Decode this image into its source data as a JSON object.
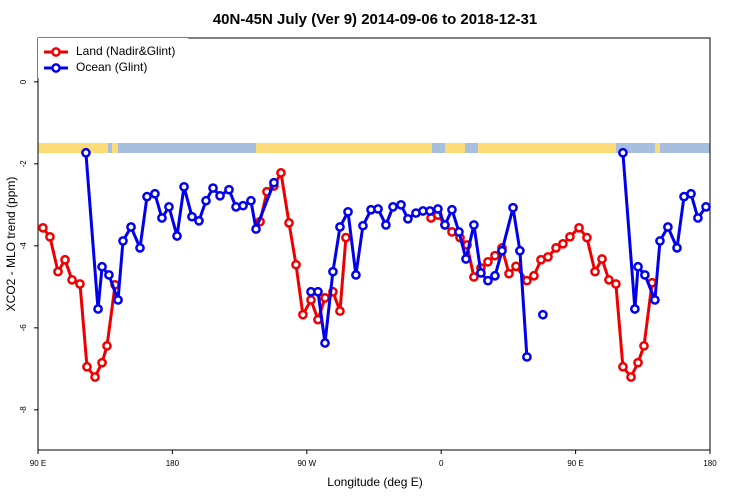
{
  "chart_data": {
    "type": "line",
    "title": "40N-45N July (Ver 9)   2014-09-06 to 2018-12-31",
    "xlabel": "Longitude (deg E)",
    "ylabel": "XCO2 - MLO trend (ppm)",
    "xlim": [
      90,
      540
    ],
    "ylim": [
      -8.98,
      1.07
    ],
    "xticks": [
      {
        "value": 90,
        "label": "90 E"
      },
      180,
      {
        "value": 270,
        "label": "90 W"
      },
      {
        "value": 360,
        "label": "0"
      },
      {
        "value": 450,
        "label": "90 E"
      },
      {
        "value": 540,
        "label": "180"
      }
    ],
    "yticks": [
      0,
      -2,
      -4,
      -6,
      -8
    ],
    "legend": "top-left",
    "series": [
      {
        "name": "Land (Nadir&Glint)",
        "color": "#ee0000",
        "x": [
          93.3,
          98.0,
          103.4,
          108.1,
          112.8,
          118.1,
          122.8,
          128.2,
          132.9,
          136.2,
          141.6,
          null,
          238.7,
          243.3,
          248.0,
          252.7,
          258.1,
          262.8,
          267.4,
          272.8,
          277.5,
          282.2,
          287.5,
          292.2,
          296.2,
          null,
          353.2,
          357.8,
          362.5,
          367.2,
          372.6,
          377.3,
          381.9,
          386.6,
          391.3,
          396.0,
          400.7,
          405.4,
          410.1,
          417.4,
          422.1,
          426.8,
          431.5,
          436.9,
          441.5,
          446.2,
          452.3,
          457.6,
          463.0,
          467.7,
          472.3,
          477.0,
          481.7,
          487.1,
          491.8,
          495.8,
          501.2
        ],
        "values": [
          -3.56,
          -3.78,
          -4.63,
          -4.34,
          -4.83,
          -4.93,
          -6.95,
          -7.2,
          -6.85,
          -6.44,
          -4.95,
          null,
          -3.41,
          -2.68,
          -2.54,
          -2.22,
          -3.44,
          -4.46,
          -5.68,
          -5.32,
          -5.8,
          -5.27,
          -5.12,
          -5.59,
          -3.8,
          null,
          -3.32,
          -3.25,
          -3.49,
          -3.66,
          -3.8,
          -3.98,
          -4.76,
          -4.54,
          -4.39,
          -4.24,
          -4.05,
          -4.68,
          -4.5,
          -4.85,
          -4.73,
          -4.34,
          -4.27,
          -4.05,
          -3.95,
          -3.78,
          -3.56,
          -3.8,
          -4.63,
          -4.32,
          -4.83,
          -4.93,
          -6.95,
          -7.2,
          -6.85,
          -6.44,
          -4.9
        ]
      },
      {
        "name": "Ocean (Glint)",
        "color": "#0000ee",
        "x": [
          122.1,
          130.2,
          132.9,
          137.5,
          143.6,
          146.9,
          152.3,
          158.3,
          163.0,
          168.3,
          173.0,
          177.7,
          183.1,
          187.8,
          193.1,
          197.8,
          202.5,
          207.2,
          211.9,
          217.9,
          222.6,
          227.3,
          232.6,
          236.0,
          248.0,
          null,
          272.8,
          277.5,
          282.2,
          287.5,
          292.2,
          297.6,
          302.9,
          307.6,
          313.0,
          317.7,
          323.0,
          327.7,
          333.1,
          337.7,
          343.1,
          347.8,
          352.5,
          357.8,
          362.5,
          367.2,
          371.9,
          376.6,
          381.9,
          386.6,
          391.3,
          396.0,
          400.7,
          408.1,
          412.7,
          417.4,
          null,
          428.1,
          null,
          481.7,
          489.7,
          491.8,
          496.4,
          503.1,
          506.5,
          511.8,
          517.9,
          522.6,
          527.3,
          531.9,
          537.3
        ],
        "values": [
          -1.73,
          -5.54,
          -4.51,
          -4.71,
          -5.32,
          -3.88,
          -3.54,
          -4.05,
          -2.8,
          -2.73,
          -3.32,
          -3.05,
          -3.76,
          -2.56,
          -3.29,
          -3.39,
          -2.9,
          -2.59,
          -2.78,
          -2.63,
          -3.05,
          -3.02,
          -2.9,
          -3.59,
          -2.46,
          null,
          -5.12,
          -5.12,
          -6.37,
          -4.63,
          -3.54,
          -3.17,
          -4.71,
          -3.51,
          -3.12,
          -3.1,
          -3.49,
          -3.05,
          -3.0,
          -3.34,
          -3.2,
          -3.15,
          -3.15,
          -3.1,
          -3.49,
          -3.12,
          -3.66,
          -4.32,
          -3.49,
          -4.66,
          -4.85,
          -4.73,
          -4.12,
          -3.07,
          -4.12,
          -6.71,
          null,
          -5.68,
          null,
          -1.73,
          -5.54,
          -4.51,
          -4.71,
          -5.32,
          -3.88,
          -3.54,
          -4.05,
          -2.8,
          -2.73,
          -3.32,
          -3.05
        ]
      }
    ]
  }
}
